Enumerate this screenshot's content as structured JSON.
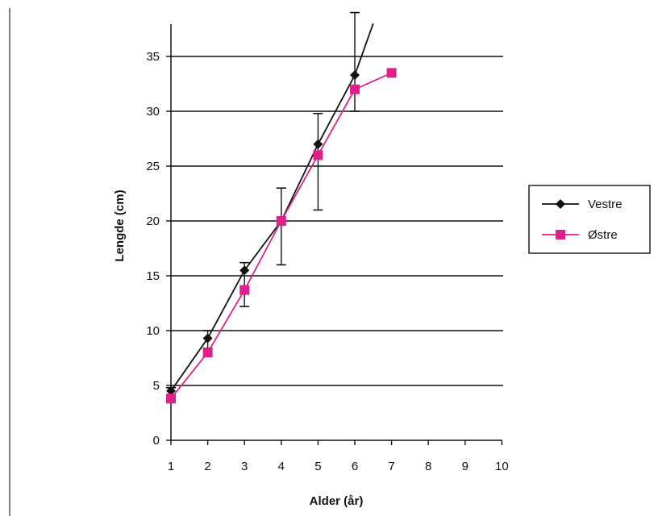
{
  "chart_data": {
    "type": "line",
    "xlabel": "Alder (år)",
    "ylabel": "Lengde (cm)",
    "xlim": [
      1,
      10
    ],
    "ylim": [
      0,
      38
    ],
    "x_ticks": [
      "1",
      "2",
      "3",
      "4",
      "5",
      "6",
      "7",
      "8",
      "9",
      "10"
    ],
    "y_ticks": [
      "0",
      "5",
      "10",
      "15",
      "20",
      "25",
      "30",
      "35"
    ],
    "y_tick_values": [
      0,
      5,
      10,
      15,
      20,
      25,
      30,
      35
    ],
    "grid": "horizontal",
    "legend_position": "right",
    "series": [
      {
        "name": "Vestre",
        "color": "#111111",
        "marker": "diamond",
        "x": [
          1,
          2,
          3,
          4,
          5,
          6
        ],
        "y": [
          4.5,
          9.3,
          15.5,
          20,
          27,
          33.3
        ],
        "error_low": [
          4.0,
          8.4,
          12.2,
          16.0,
          21.0,
          30.0
        ],
        "error_high": [
          4.8,
          10.0,
          16.2,
          23.0,
          29.8,
          39.0
        ],
        "trend_to": [
          6.5,
          38.0
        ]
      },
      {
        "name": "Østre",
        "color": "#e0208a",
        "marker": "square",
        "x": [
          1,
          2,
          3,
          4,
          5,
          6,
          7
        ],
        "y": [
          3.8,
          8.0,
          13.7,
          20.0,
          26.0,
          32.0,
          33.5
        ]
      }
    ]
  }
}
